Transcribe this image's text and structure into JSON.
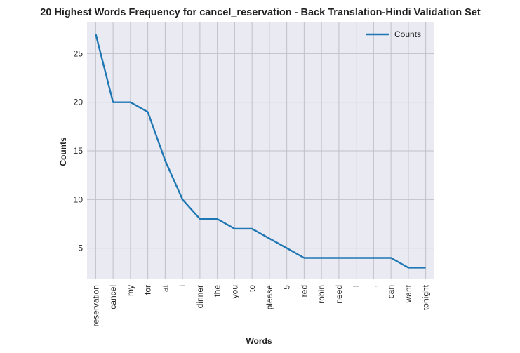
{
  "chart_data": {
    "type": "line",
    "title": "20 Highest Words Frequency for cancel_reservation - Back Translation-Hindi Validation Set",
    "xlabel": "Words",
    "ylabel": "Counts",
    "categories": [
      "reservation",
      "cancel",
      "my",
      "for",
      "at",
      "i",
      "dinner",
      "the",
      "you",
      "to",
      "please",
      "5",
      "red",
      "robin",
      "need",
      "I",
      ",",
      "can",
      "want",
      "tonight"
    ],
    "series": [
      {
        "name": "Counts",
        "values": [
          27,
          20,
          20,
          19,
          14,
          10,
          8,
          8,
          7,
          7,
          6,
          5,
          4,
          4,
          4,
          4,
          4,
          4,
          3,
          3
        ],
        "color": "#1f77b4"
      }
    ],
    "yticks": [
      5,
      10,
      15,
      20,
      25
    ],
    "ylim": [
      1.8,
      28.2
    ],
    "grid": true,
    "legend_position": "top-right",
    "background_color": "#eaeaf2",
    "grid_color": "#c0c0c8"
  }
}
